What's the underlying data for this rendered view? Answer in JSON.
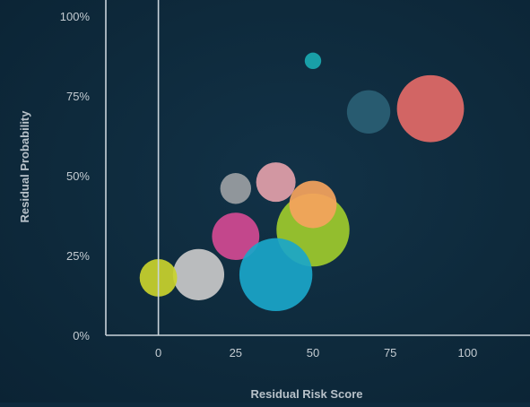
{
  "chart_data": {
    "type": "scatter",
    "title": "",
    "xlabel": "Residual Risk Score",
    "ylabel": "Residual Probability",
    "xlim": [
      -17,
      117
    ],
    "ylim": [
      0,
      100
    ],
    "x_ticks": [
      {
        "value": 0,
        "label": "0"
      },
      {
        "value": 25,
        "label": "25"
      },
      {
        "value": 50,
        "label": "50"
      },
      {
        "value": 75,
        "label": "75"
      },
      {
        "value": 100,
        "label": "100"
      }
    ],
    "y_ticks": [
      {
        "value": 0,
        "label": "0%"
      },
      {
        "value": 25,
        "label": "25%"
      },
      {
        "value": 50,
        "label": "50%"
      },
      {
        "value": 75,
        "label": "75%"
      },
      {
        "value": 100,
        "label": "100%"
      }
    ],
    "colors": {
      "axis": "#c9d3da",
      "tick_label": "#c4ccd2",
      "axis_label": "#b7c1c9"
    },
    "points": [
      {
        "x": 50,
        "y": 86,
        "size": 0.42,
        "color": "#1aa9b0"
      },
      {
        "x": 68,
        "y": 70,
        "size": 1.1,
        "color": "#2a5f74"
      },
      {
        "x": 88,
        "y": 71,
        "size": 1.7,
        "color": "#e36a67"
      },
      {
        "x": 38,
        "y": 48,
        "size": 1.0,
        "color": "#e3a0aa"
      },
      {
        "x": 25,
        "y": 46,
        "size": 0.78,
        "color": "#9b9fa3"
      },
      {
        "x": 50,
        "y": 33,
        "size": 1.85,
        "color": "#9ecb2d"
      },
      {
        "x": 50,
        "y": 41,
        "size": 1.2,
        "color": "#f5a35d"
      },
      {
        "x": 25,
        "y": 31,
        "size": 1.2,
        "color": "#d34a93"
      },
      {
        "x": 38,
        "y": 19,
        "size": 1.85,
        "color": "#1aa6c9"
      },
      {
        "x": 13,
        "y": 19,
        "size": 1.3,
        "color": "#c9c9c9"
      },
      {
        "x": 0,
        "y": 18,
        "size": 0.95,
        "color": "#c9d22c"
      }
    ]
  }
}
